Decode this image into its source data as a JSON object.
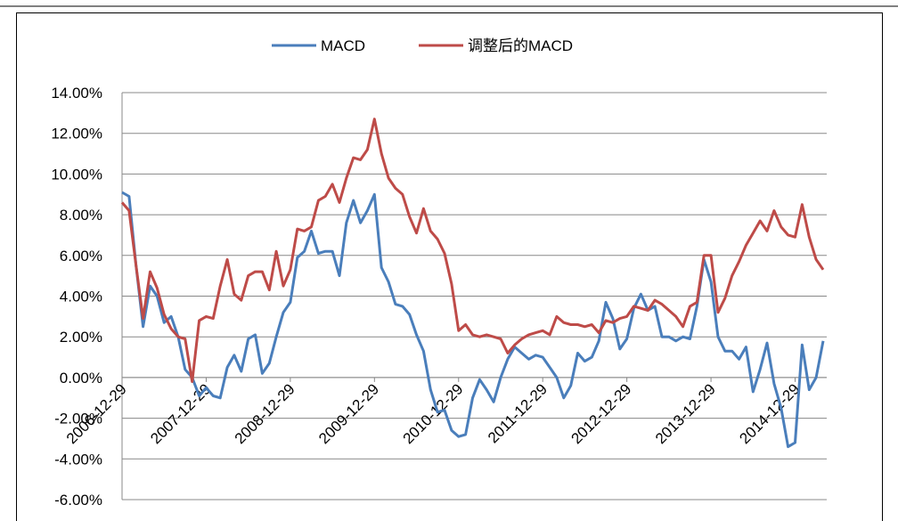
{
  "chart_data": {
    "type": "line",
    "categories": [
      "2006-12-29",
      null,
      null,
      null,
      null,
      null,
      null,
      null,
      null,
      null,
      null,
      null,
      "2007-12-29",
      null,
      null,
      null,
      null,
      null,
      null,
      null,
      null,
      null,
      null,
      null,
      "2008-12-29",
      null,
      null,
      null,
      null,
      null,
      null,
      null,
      null,
      null,
      null,
      null,
      "2009-12-29",
      null,
      null,
      null,
      null,
      null,
      null,
      null,
      null,
      null,
      null,
      null,
      "2010-12-29",
      null,
      null,
      null,
      null,
      null,
      null,
      null,
      null,
      null,
      null,
      null,
      "2011-12-29",
      null,
      null,
      null,
      null,
      null,
      null,
      null,
      null,
      null,
      null,
      null,
      "2012-12-29",
      null,
      null,
      null,
      null,
      null,
      null,
      null,
      null,
      null,
      null,
      null,
      "2013-12-29",
      null,
      null,
      null,
      null,
      null,
      null,
      null,
      null,
      null,
      null,
      null,
      "2014-12-29",
      null,
      null,
      null,
      null
    ],
    "series": [
      {
        "name": "MACD",
        "color": "#4a7ebb",
        "values": [
          9.1,
          8.9,
          5.5,
          2.5,
          4.5,
          4.0,
          2.7,
          3.0,
          2.0,
          0.4,
          0.0,
          -0.9,
          -0.5,
          -0.9,
          -1.0,
          0.5,
          1.1,
          0.3,
          1.9,
          2.1,
          0.2,
          0.7,
          2.0,
          3.2,
          3.7,
          5.9,
          6.2,
          7.2,
          6.1,
          6.2,
          6.2,
          5.0,
          7.6,
          8.7,
          7.6,
          8.2,
          9.0,
          5.4,
          4.7,
          3.6,
          3.5,
          3.1,
          2.1,
          1.3,
          -0.6,
          -1.7,
          -1.6,
          -2.6,
          -2.9,
          -2.8,
          -1.0,
          -0.1,
          -0.6,
          -1.2,
          0.0,
          0.9,
          1.5,
          1.2,
          0.9,
          1.1,
          1.0,
          0.5,
          0.0,
          -1.0,
          -0.4,
          1.2,
          0.8,
          1.0,
          1.8,
          3.7,
          2.9,
          1.4,
          1.9,
          3.4,
          4.1,
          3.3,
          3.5,
          2.0,
          2.0,
          1.8,
          2.0,
          1.9,
          3.5,
          5.8,
          4.7,
          2.0,
          1.3,
          1.3,
          0.9,
          1.5,
          -0.7,
          0.4,
          1.7,
          -0.3,
          -1.5,
          -3.4,
          -3.2,
          1.6,
          -0.6,
          0.0,
          1.8
        ]
      },
      {
        "name": "调整后的MACD",
        "color": "#be4b48",
        "values": [
          8.6,
          8.2,
          5.5,
          2.9,
          5.2,
          4.4,
          3.1,
          2.4,
          2.0,
          1.9,
          -0.2,
          2.8,
          3.0,
          2.9,
          4.5,
          5.8,
          4.1,
          3.8,
          5.0,
          5.2,
          5.2,
          4.3,
          6.2,
          4.5,
          5.3,
          7.3,
          7.2,
          7.4,
          8.7,
          8.9,
          9.5,
          8.6,
          9.8,
          10.8,
          10.7,
          11.2,
          12.7,
          11.0,
          9.8,
          9.3,
          9.0,
          7.9,
          7.1,
          8.3,
          7.2,
          6.8,
          6.1,
          4.6,
          2.3,
          2.6,
          2.1,
          2.0,
          2.1,
          2.0,
          1.9,
          1.2,
          1.6,
          1.9,
          2.1,
          2.2,
          2.3,
          2.1,
          3.0,
          2.7,
          2.6,
          2.6,
          2.5,
          2.6,
          2.2,
          2.8,
          2.7,
          2.9,
          3.0,
          3.5,
          3.4,
          3.3,
          3.8,
          3.6,
          3.3,
          3.0,
          2.5,
          3.5,
          3.7,
          6.0,
          6.0,
          3.2,
          3.9,
          5.0,
          5.7,
          6.5,
          7.1,
          7.7,
          7.2,
          8.2,
          7.4,
          7.0,
          6.9,
          8.5,
          6.9,
          5.8,
          5.3
        ]
      }
    ],
    "ylim": [
      -6,
      14
    ],
    "yticks": [
      {
        "value": -6,
        "label": "-6.00%"
      },
      {
        "value": -4,
        "label": "-4.00%"
      },
      {
        "value": -2,
        "label": "-2.00%"
      },
      {
        "value": 0,
        "label": "0.00%"
      },
      {
        "value": 2,
        "label": "2.00%"
      },
      {
        "value": 4,
        "label": "4.00%"
      },
      {
        "value": 6,
        "label": "6.00%"
      },
      {
        "value": 8,
        "label": "8.00%"
      },
      {
        "value": 10,
        "label": "10.00%"
      },
      {
        "value": 12,
        "label": "12.00%"
      },
      {
        "value": 14,
        "label": "14.00%"
      }
    ],
    "grid": true,
    "legend": "top"
  }
}
